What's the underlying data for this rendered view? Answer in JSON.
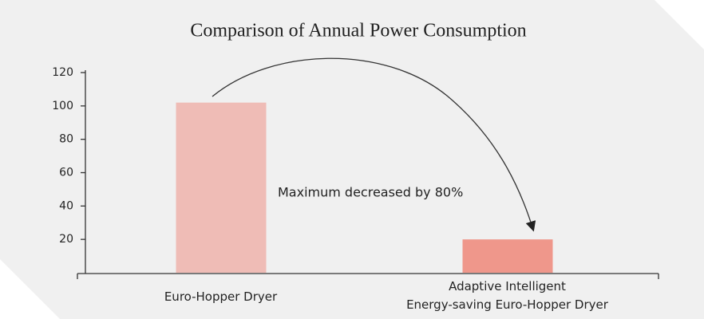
{
  "chart_data": {
    "type": "bar",
    "title": "Comparison of Annual Power Consumption",
    "categories": [
      "Euro-Hopper Dryer",
      "Adaptive Intelligent\nEnergy-saving Euro-Hopper Dryer"
    ],
    "values": [
      102,
      20
    ],
    "colors": [
      "#efbcb6",
      "#ef978b"
    ],
    "ylim": [
      0,
      120
    ],
    "yticks": [
      20,
      40,
      60,
      80,
      100,
      120
    ],
    "annotation": "Maximum decreased by 80%"
  }
}
